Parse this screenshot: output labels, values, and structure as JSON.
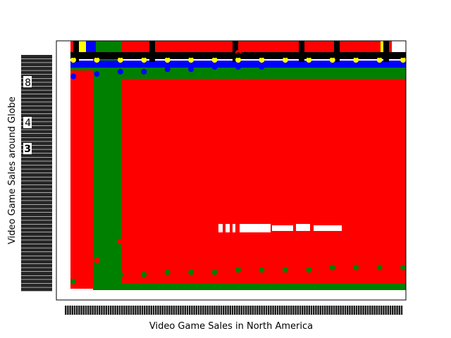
{
  "chart_data": {
    "type": "scatter",
    "title": "",
    "xlabel": "Video Game Sales in North America",
    "ylabel": "Video Game Sales around Globe",
    "legend": "none",
    "grid": false,
    "x_tick_labels": "dense, unreadable (overlapping category labels such as 0.01, 0.02, ...)",
    "y_tick_labels": "dense, unreadable (overlapping value labels such as 0.01, 0.02, ...)",
    "readable_y_ticks": [
      "8",
      "4",
      "3"
    ],
    "series_colors": [
      "#ff0000",
      "#008000",
      "#0000ff",
      "#ffff00",
      "#000000"
    ],
    "series": [
      {
        "color": "#ff0000",
        "x": [
          0,
          1,
          2,
          3,
          4,
          5,
          6,
          7,
          8,
          9,
          10,
          11,
          12,
          13,
          14
        ],
        "y": [
          0.05,
          0.12,
          0.2,
          0.3,
          0.45,
          0.6,
          0.8,
          1.0,
          1.3,
          1.6,
          2.0,
          2.6,
          3.2,
          4.0,
          4.9
        ]
      },
      {
        "color": "#008000",
        "x": [
          0,
          1,
          2,
          3,
          4,
          5,
          6,
          7,
          8,
          9,
          10,
          11,
          12,
          13,
          14
        ],
        "y": [
          0.03,
          0.05,
          0.06,
          0.06,
          0.07,
          0.07,
          0.07,
          0.08,
          0.08,
          0.08,
          0.08,
          0.09,
          0.09,
          0.09,
          0.09
        ]
      },
      {
        "color": "#0000ff",
        "x": [
          0,
          1,
          2,
          3,
          4,
          5,
          6,
          7,
          8,
          9,
          10,
          11,
          12,
          13,
          14
        ],
        "y": [
          0.9,
          0.91,
          0.92,
          0.92,
          0.93,
          0.93,
          0.94,
          0.94,
          0.94,
          0.95,
          0.95,
          0.95,
          0.95,
          0.96,
          0.96
        ]
      },
      {
        "color": "#ffff00",
        "x": [
          0,
          1,
          2,
          3,
          4,
          5,
          6,
          7,
          8,
          9,
          10,
          11,
          12,
          13,
          14
        ],
        "y": [
          0.97,
          0.97,
          0.97,
          0.97,
          0.97,
          0.97,
          0.97,
          0.97,
          0.97,
          0.97,
          0.97,
          0.97,
          0.97,
          0.97,
          0.97
        ]
      },
      {
        "color": "#000000",
        "x": [
          0,
          1,
          2,
          3,
          4,
          5,
          6,
          7,
          8,
          9,
          10,
          11,
          12,
          13,
          14
        ],
        "y": [
          0.99,
          0.99,
          0.99,
          0.99,
          0.99,
          0.99,
          0.99,
          0.99,
          0.99,
          0.99,
          0.99,
          0.99,
          0.99,
          0.99,
          0.99
        ]
      }
    ]
  }
}
